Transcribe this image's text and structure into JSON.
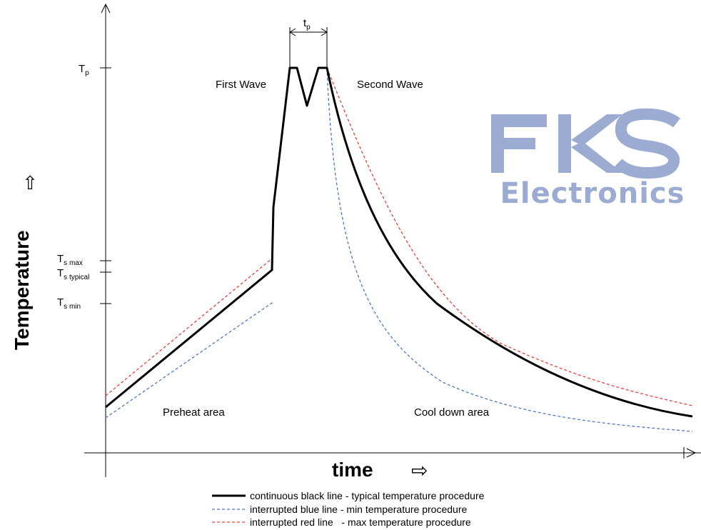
{
  "chart_data": {
    "type": "line",
    "title": "",
    "xlabel": "time",
    "ylabel": "Temperature",
    "x_arrow_symbol": "⇨",
    "y_arrow_symbol": "⇧",
    "y_ticks": [
      {
        "main": "T",
        "sub": "p"
      },
      {
        "main": "T",
        "sub": "s max"
      },
      {
        "main": "T",
        "sub": "s typical"
      },
      {
        "main": "T",
        "sub": "s min"
      }
    ],
    "tp_marker": {
      "main": "t",
      "sub": "p"
    },
    "annotations": {
      "first_wave": "First Wave",
      "second_wave": "Second Wave",
      "preheat": "Preheat area",
      "cooldown": "Cool down area"
    },
    "series": [
      {
        "name": "continuous black line - typical temperature procedure",
        "color": "#000000",
        "style": "solid",
        "role": "typical"
      },
      {
        "name": "interrupted blue line - min temperature procedure",
        "color": "#4f79bd",
        "style": "dashed",
        "role": "min"
      },
      {
        "name": "interrupted red line   - max temperature procedure",
        "color": "#e8413c",
        "style": "dashed",
        "role": "max"
      }
    ],
    "grid": false,
    "legend_position": "bottom-center"
  },
  "watermark": {
    "line1": "FKS",
    "line2": "Electronics",
    "color": "#8a9dca"
  }
}
